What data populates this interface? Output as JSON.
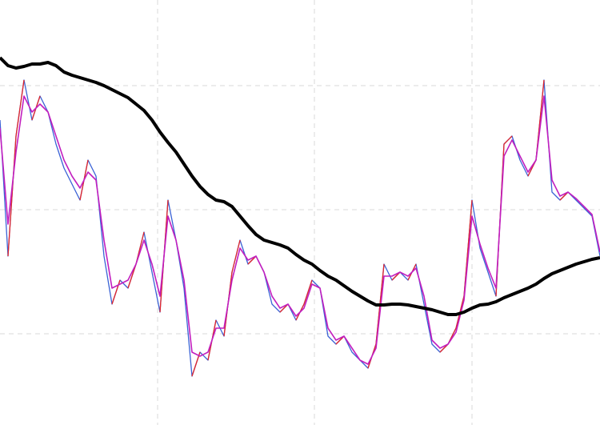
{
  "chart_data": {
    "type": "line",
    "x": [
      0,
      1,
      2,
      3,
      4,
      5,
      6,
      7,
      8,
      9,
      10,
      11,
      12,
      13,
      14,
      15,
      16,
      17,
      18,
      19,
      20,
      21,
      22,
      23,
      24,
      25,
      26,
      27,
      28,
      29,
      30,
      31,
      32,
      33,
      34,
      35,
      36,
      37,
      38,
      39,
      40,
      41,
      42,
      43,
      44,
      45,
      46,
      47,
      48,
      49,
      50,
      51,
      52,
      53,
      54,
      55,
      56,
      57,
      58,
      59,
      60,
      61,
      62,
      63,
      64,
      65,
      66,
      67,
      68,
      69,
      70,
      71,
      72,
      73,
      74,
      75
    ],
    "series": [
      {
        "color": "#3a62d6",
        "up_color": "#e3262b",
        "width": 1.3,
        "values": [
          381,
          211,
          361,
          431,
          381,
          411,
          391,
          351,
          321,
          301,
          281,
          331,
          311,
          211,
          151,
          181,
          171,
          201,
          241,
          191,
          141,
          281,
          231,
          171,
          61,
          91,
          81,
          131,
          111,
          191,
          231,
          201,
          211,
          191,
          151,
          141,
          151,
          131,
          151,
          181,
          171,
          111,
          101,
          111,
          91,
          81,
          71,
          101,
          201,
          181,
          191,
          181,
          201,
          151,
          101,
          91,
          101,
          121,
          161,
          281,
          221,
          191,
          161,
          351,
          361,
          331,
          311,
          331,
          431,
          291,
          281,
          291,
          281,
          271,
          261,
          211
        ]
      },
      {
        "color": "#c21fbf",
        "width": 1.6,
        "values": [
          371,
          251,
          341,
          411,
          391,
          401,
          391,
          361,
          331,
          311,
          296,
          316,
          306,
          231,
          171,
          176,
          181,
          201,
          231,
          201,
          161,
          261,
          231,
          181,
          91,
          86,
          91,
          121,
          121,
          181,
          221,
          206,
          211,
          191,
          161,
          146,
          151,
          136,
          146,
          176,
          171,
          121,
          106,
          111,
          96,
          81,
          76,
          96,
          186,
          186,
          191,
          186,
          196,
          161,
          106,
          96,
          101,
          116,
          156,
          261,
          226,
          196,
          171,
          336,
          356,
          336,
          316,
          331,
          411,
          306,
          286,
          291,
          283,
          273,
          263,
          216
        ]
      },
      {
        "color": "#000000",
        "width": 4,
        "values": [
          459,
          449,
          446,
          448,
          451,
          451,
          453,
          449,
          441,
          437,
          434,
          431,
          428,
          424,
          419,
          414,
          409,
          401,
          393,
          381,
          366,
          353,
          341,
          326,
          311,
          298,
          288,
          281,
          279,
          273,
          261,
          249,
          238,
          231,
          228,
          225,
          221,
          213,
          206,
          201,
          193,
          186,
          181,
          174,
          167,
          161,
          155,
          150,
          150,
          151,
          151,
          150,
          148,
          146,
          144,
          141,
          138,
          138,
          141,
          146,
          150,
          151,
          154,
          159,
          163,
          167,
          171,
          176,
          183,
          189,
          193,
          197,
          201,
          204,
          207,
          209
        ]
      }
    ],
    "xlim": [
      0,
      75
    ],
    "xticks": [
      19.7,
      39.3,
      59
    ],
    "ylim": [
      0,
      531
    ],
    "yticks": [
      114,
      269,
      424
    ],
    "grid": true
  }
}
